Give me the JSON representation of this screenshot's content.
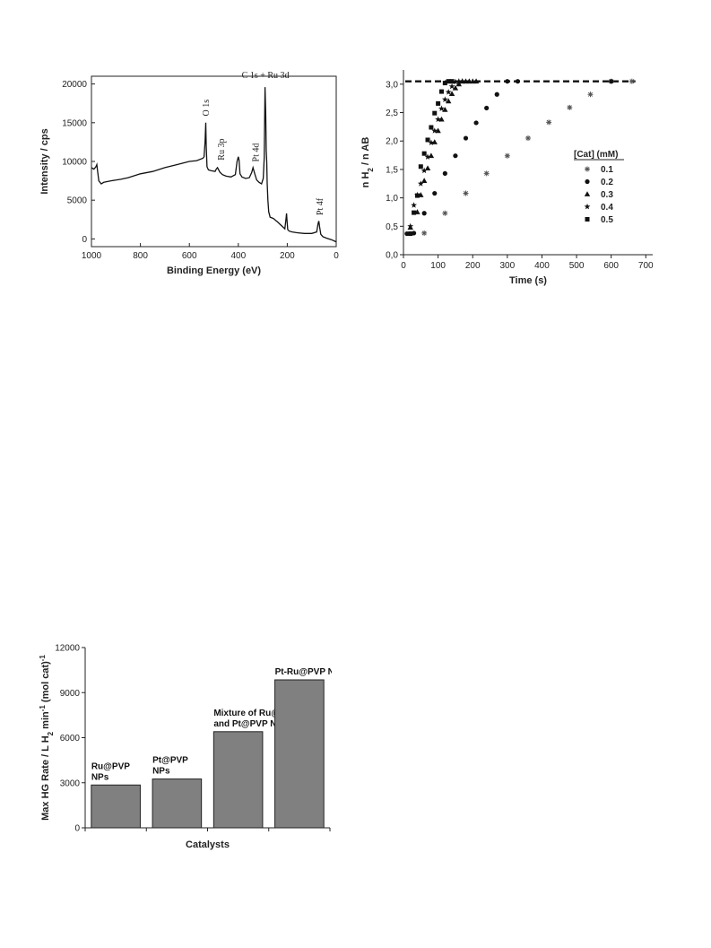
{
  "xps": {
    "chart_data": {
      "type": "line",
      "xlabel": "Binding Energy (eV)",
      "ylabel": "Intensity / cps",
      "xlim": [
        1000,
        0
      ],
      "ylim": [
        -1000,
        21000
      ],
      "x_ticks": [
        "1000",
        "800",
        "600",
        "400",
        "200",
        "0"
      ],
      "y_ticks": [
        "0",
        "5000",
        "10000",
        "15000",
        "20000"
      ],
      "peak_labels": [
        "O 1s",
        "Ru 3p",
        "Pt 4d",
        "C 1s + Ru 3d",
        "Pt 4f"
      ],
      "x_reversed": true,
      "series": [
        {
          "x": [
            1000,
            990,
            982,
            978,
            975,
            970,
            960,
            950,
            920,
            880,
            850,
            800,
            750,
            700,
            650,
            600,
            570,
            545,
            540,
            536,
            533,
            531,
            528,
            522,
            510,
            495,
            490,
            485,
            475,
            465,
            450,
            430,
            412,
            405,
            400,
            397,
            393,
            385,
            370,
            355,
            345,
            340,
            332,
            325,
            315,
            305,
            298,
            294,
            291,
            288,
            286,
            284,
            282,
            279,
            276,
            270,
            262,
            255,
            248,
            240,
            230,
            220,
            210,
            205,
            203,
            201,
            198,
            192,
            180,
            160,
            130,
            100,
            80,
            74,
            71,
            68,
            63,
            55,
            40,
            20,
            5,
            0
          ],
          "y": [
            9200,
            9000,
            9300,
            9600,
            8800,
            7500,
            7100,
            7300,
            7500,
            7700,
            7900,
            8400,
            8700,
            9200,
            9600,
            10000,
            10100,
            10400,
            10600,
            12500,
            15000,
            12000,
            9300,
            8900,
            8800,
            8700,
            9000,
            9200,
            8600,
            8300,
            8100,
            8000,
            8300,
            10000,
            10600,
            10200,
            8400,
            8000,
            7800,
            7900,
            8600,
            9200,
            8300,
            7600,
            7300,
            7100,
            7800,
            10500,
            19600,
            16000,
            11500,
            10000,
            7200,
            5000,
            3500,
            2800,
            2700,
            2600,
            2400,
            2200,
            1900,
            1600,
            1300,
            2600,
            3300,
            2400,
            1200,
            1000,
            900,
            800,
            700,
            700,
            900,
            2000,
            2300,
            1600,
            600,
            300,
            100,
            -100,
            -300,
            -400
          ]
        }
      ]
    }
  },
  "kinetics": {
    "chart_data": {
      "type": "scatter",
      "xlabel": "Time (s)",
      "ylabel_main": "n H",
      "ylabel_sub": "2",
      "ylabel_tail": " / n AB",
      "xlim": [
        0,
        720
      ],
      "ylim": [
        0,
        3.25
      ],
      "x_ticks": [
        "0",
        "100",
        "200",
        "300",
        "400",
        "500",
        "600",
        "700"
      ],
      "y_ticks": [
        "0,0",
        "0,5",
        "1,0",
        "1,5",
        "2,0",
        "2,5",
        "3,0"
      ],
      "plateau": 3.05,
      "legend_title": "[Cat] (mM)",
      "legend_placement": "right",
      "series": [
        {
          "name": "0.1",
          "marker": "asterisk",
          "x": [
            60,
            120,
            180,
            240,
            300,
            360,
            420,
            480,
            540,
            600,
            660
          ],
          "y": [
            0.38,
            0.73,
            1.08,
            1.43,
            1.74,
            2.05,
            2.33,
            2.59,
            2.82,
            3.05,
            3.05
          ]
        },
        {
          "name": "0.2",
          "marker": "circle",
          "x": [
            10,
            30,
            60,
            90,
            120,
            150,
            180,
            210,
            240,
            270,
            300,
            330,
            600
          ],
          "y": [
            0.37,
            0.38,
            0.73,
            1.08,
            1.43,
            1.74,
            2.05,
            2.32,
            2.58,
            2.82,
            3.05,
            3.05,
            3.05
          ]
        },
        {
          "name": "0.3",
          "marker": "triangle",
          "x": [
            20,
            40,
            50,
            60,
            70,
            80,
            90,
            100,
            110,
            120,
            130,
            140,
            150,
            160,
            170,
            180,
            190,
            200,
            210
          ],
          "y": [
            0.48,
            0.75,
            1.05,
            1.3,
            1.52,
            1.74,
            1.98,
            2.18,
            2.38,
            2.55,
            2.7,
            2.83,
            2.93,
            3.0,
            3.05,
            3.05,
            3.05,
            3.05,
            3.05
          ]
        },
        {
          "name": "0.4",
          "marker": "star",
          "x": [
            20,
            30,
            40,
            50,
            60,
            70,
            80,
            90,
            100,
            110,
            120,
            130,
            140,
            150,
            160,
            170
          ],
          "y": [
            0.5,
            0.87,
            1.05,
            1.25,
            1.48,
            1.72,
            1.97,
            2.18,
            2.38,
            2.57,
            2.73,
            2.86,
            2.96,
            3.04,
            3.05,
            3.05
          ]
        },
        {
          "name": "0.5",
          "marker": "square",
          "x": [
            20,
            30,
            40,
            50,
            60,
            70,
            80,
            90,
            100,
            110,
            120,
            130,
            140
          ],
          "y": [
            0.37,
            0.74,
            1.04,
            1.55,
            1.78,
            2.02,
            2.24,
            2.49,
            2.66,
            2.87,
            3.02,
            3.05,
            3.05
          ]
        }
      ]
    }
  },
  "bars": {
    "chart_data": {
      "type": "bar",
      "xlabel": "Catalysts",
      "ylabel_main": "Max HG Rate / L H",
      "ylabel_sub1": "2",
      "ylabel_mid": " min",
      "ylabel_sup1": "-1",
      "ylabel_tail": " (mol cat)",
      "ylabel_sup2": "-1",
      "ylim": [
        0,
        12000
      ],
      "y_ticks": [
        "0",
        "3000",
        "6000",
        "9000",
        "12000"
      ],
      "bar_color": "#808080",
      "categories": [
        {
          "lines": [
            "Ru@PVP",
            "NPs"
          ]
        },
        {
          "lines": [
            "Pt@PVP",
            "NPs"
          ]
        },
        {
          "lines": [
            "Mixture of Ru@PVP",
            "and Pt@PVP NPs"
          ]
        },
        {
          "lines": [
            "Pt-Ru@PVP NPs"
          ]
        }
      ],
      "values": [
        2850,
        3250,
        6400,
        9850
      ]
    }
  }
}
